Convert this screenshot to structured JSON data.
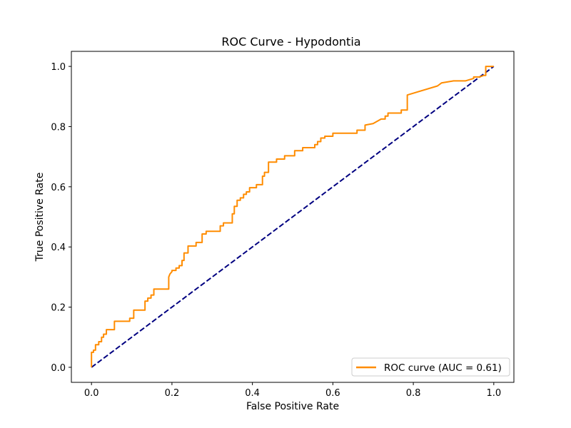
{
  "chart_data": {
    "type": "line",
    "title": "ROC Curve - Hypodontia",
    "xlabel": "False Positive Rate",
    "ylabel": "True Positive Rate",
    "xlim": [
      -0.05,
      1.05
    ],
    "ylim": [
      -0.05,
      1.05
    ],
    "xticks": [
      0.0,
      0.2,
      0.4,
      0.6,
      0.8,
      1.0
    ],
    "yticks": [
      0.0,
      0.2,
      0.4,
      0.6,
      0.8,
      1.0
    ],
    "xtick_labels": [
      "0.0",
      "0.2",
      "0.4",
      "0.6",
      "0.8",
      "1.0"
    ],
    "ytick_labels": [
      "0.0",
      "0.2",
      "0.4",
      "0.6",
      "0.8",
      "1.0"
    ],
    "grid": false,
    "legend_position": "lower-right",
    "series": [
      {
        "name": "ROC curve (AUC = 0.61)",
        "color": "#ff8c00",
        "style": "solid",
        "x": [
          0.0,
          0.0,
          0.005,
          0.005,
          0.01,
          0.01,
          0.018,
          0.018,
          0.025,
          0.025,
          0.03,
          0.03,
          0.037,
          0.037,
          0.057,
          0.057,
          0.095,
          0.095,
          0.105,
          0.105,
          0.133,
          0.133,
          0.14,
          0.14,
          0.148,
          0.148,
          0.155,
          0.155,
          0.192,
          0.192,
          0.195,
          0.2,
          0.2,
          0.21,
          0.21,
          0.218,
          0.218,
          0.225,
          0.225,
          0.23,
          0.23,
          0.24,
          0.24,
          0.26,
          0.26,
          0.275,
          0.275,
          0.285,
          0.285,
          0.32,
          0.32,
          0.328,
          0.328,
          0.35,
          0.35,
          0.355,
          0.355,
          0.362,
          0.362,
          0.37,
          0.37,
          0.378,
          0.378,
          0.385,
          0.385,
          0.393,
          0.393,
          0.41,
          0.41,
          0.425,
          0.425,
          0.43,
          0.43,
          0.44,
          0.44,
          0.46,
          0.46,
          0.48,
          0.48,
          0.505,
          0.505,
          0.525,
          0.525,
          0.555,
          0.555,
          0.562,
          0.562,
          0.57,
          0.57,
          0.58,
          0.58,
          0.6,
          0.6,
          0.66,
          0.66,
          0.68,
          0.68,
          0.7,
          0.72,
          0.73,
          0.73,
          0.737,
          0.737,
          0.77,
          0.77,
          0.785,
          0.785,
          0.86,
          0.86,
          0.87,
          0.87,
          0.9,
          0.93,
          0.95,
          0.95,
          0.965,
          0.975,
          0.975,
          0.98,
          0.98,
          0.995,
          1.0
        ],
        "y": [
          0.0,
          0.05,
          0.05,
          0.057,
          0.057,
          0.075,
          0.075,
          0.085,
          0.085,
          0.1,
          0.1,
          0.11,
          0.11,
          0.125,
          0.125,
          0.153,
          0.153,
          0.163,
          0.163,
          0.19,
          0.19,
          0.22,
          0.22,
          0.23,
          0.23,
          0.24,
          0.24,
          0.26,
          0.26,
          0.3,
          0.31,
          0.318,
          0.322,
          0.322,
          0.33,
          0.33,
          0.338,
          0.338,
          0.355,
          0.355,
          0.38,
          0.38,
          0.403,
          0.403,
          0.415,
          0.415,
          0.443,
          0.443,
          0.452,
          0.452,
          0.47,
          0.47,
          0.48,
          0.48,
          0.51,
          0.51,
          0.535,
          0.535,
          0.555,
          0.555,
          0.563,
          0.563,
          0.575,
          0.575,
          0.583,
          0.583,
          0.597,
          0.597,
          0.607,
          0.607,
          0.635,
          0.635,
          0.648,
          0.648,
          0.682,
          0.682,
          0.692,
          0.692,
          0.703,
          0.703,
          0.72,
          0.72,
          0.73,
          0.73,
          0.74,
          0.74,
          0.75,
          0.75,
          0.762,
          0.762,
          0.768,
          0.768,
          0.778,
          0.778,
          0.788,
          0.788,
          0.805,
          0.81,
          0.825,
          0.825,
          0.835,
          0.835,
          0.845,
          0.845,
          0.855,
          0.855,
          0.905,
          0.935,
          0.935,
          0.945,
          0.945,
          0.952,
          0.952,
          0.96,
          0.965,
          0.965,
          0.97,
          0.97,
          0.97,
          1.0,
          1.0,
          1.0
        ]
      },
      {
        "name": "",
        "color": "#000080",
        "style": "dashed",
        "x": [
          0.0,
          1.0
        ],
        "y": [
          0.0,
          1.0
        ]
      }
    ]
  }
}
